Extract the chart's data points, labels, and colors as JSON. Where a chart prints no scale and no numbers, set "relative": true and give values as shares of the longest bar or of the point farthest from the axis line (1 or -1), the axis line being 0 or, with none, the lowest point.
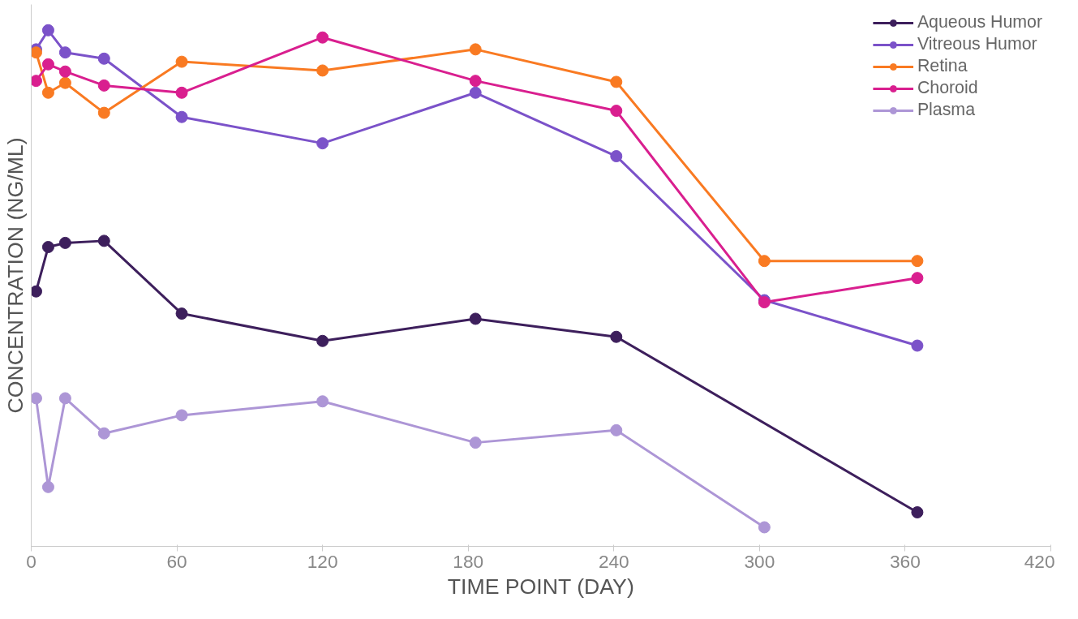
{
  "chart_data": {
    "type": "line",
    "relative": true,
    "xlabel": "TIME POINT (DAY)",
    "ylabel": "CONCENTRATION (NG/ML)",
    "x": [
      2,
      7,
      14,
      30,
      62,
      120,
      183,
      241,
      302,
      365
    ],
    "xlim": [
      0,
      420
    ],
    "xticks": [
      0,
      60,
      120,
      180,
      240,
      300,
      360,
      420
    ],
    "tick_labels": "x",
    "legend": "top right",
    "marker": "circle",
    "line_style": "solid",
    "series": [
      {
        "name": "Aqueous Humor",
        "color": "#3d1f5c",
        "x": [
          2,
          7,
          14,
          30,
          62,
          120,
          183,
          241,
          365
        ],
        "values": [
          0.494,
          0.58,
          0.588,
          0.592,
          0.451,
          0.398,
          0.441,
          0.406,
          0.066
        ]
      },
      {
        "name": "Vitreous Humor",
        "color": "#7b52c9",
        "values": [
          0.963,
          1.0,
          0.957,
          0.945,
          0.832,
          0.781,
          0.879,
          0.756,
          0.477,
          0.389
        ]
      },
      {
        "name": "Retina",
        "color": "#f97a22",
        "values": [
          0.957,
          0.879,
          0.898,
          0.84,
          0.939,
          0.922,
          0.963,
          0.9,
          0.553,
          0.553
        ]
      },
      {
        "name": "Choroid",
        "color": "#d91f8f",
        "values": [
          0.902,
          0.934,
          0.92,
          0.893,
          0.879,
          0.986,
          0.902,
          0.844,
          0.473,
          0.52
        ]
      },
      {
        "name": "Plasma",
        "color": "#ad96d6",
        "x": [
          2,
          7,
          14,
          30,
          62,
          120,
          183,
          241,
          302
        ],
        "values": [
          0.287,
          0.115,
          0.287,
          0.219,
          0.254,
          0.281,
          0.201,
          0.225,
          0.037
        ]
      }
    ]
  }
}
